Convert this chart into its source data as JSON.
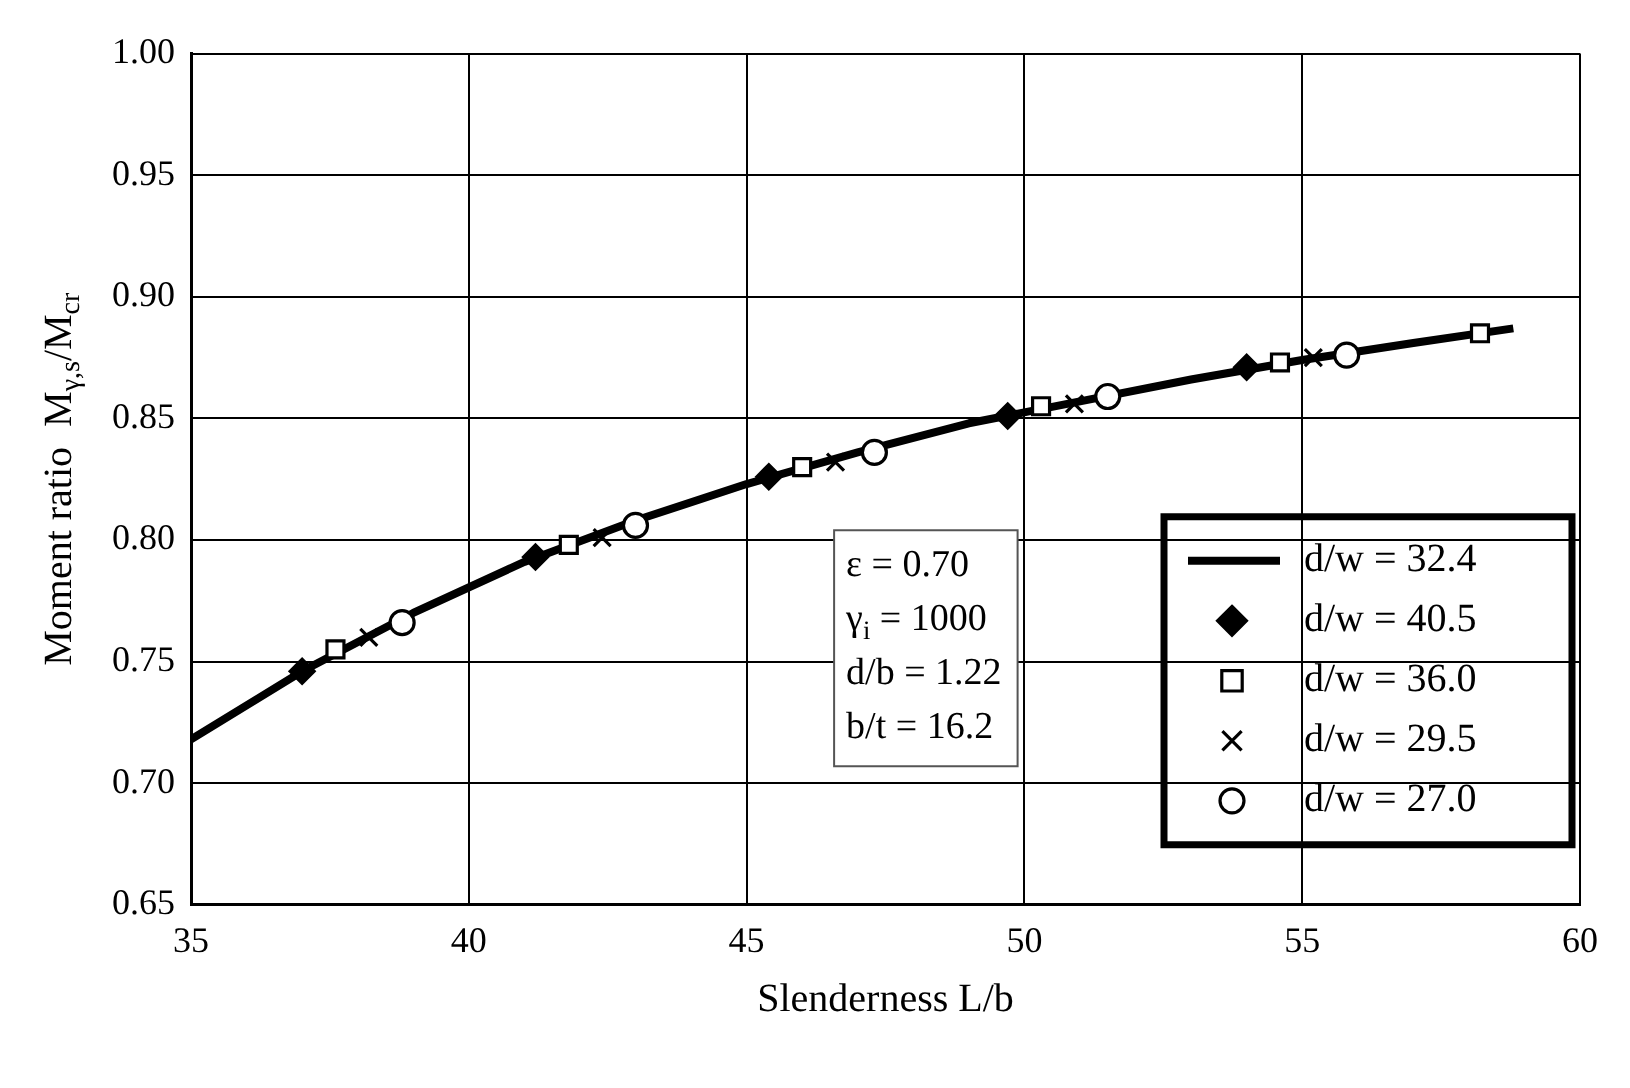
{
  "chart_data": {
    "type": "line",
    "xlabel": "Slenderness L/b",
    "ylabel": "Moment ratio  M$_{γ,s}$/M$_{cr}$",
    "xlim": [
      35,
      60
    ],
    "xticks": [
      35,
      40,
      45,
      50,
      55,
      60
    ],
    "ylim": [
      0.65,
      1.0
    ],
    "yticks": [
      {
        "value": 0.65,
        "label": "0.65"
      },
      {
        "value": 0.7,
        "label": "0.70"
      },
      {
        "value": 0.75,
        "label": "0.75"
      },
      {
        "value": 0.8,
        "label": "0.80"
      },
      {
        "value": 0.85,
        "label": "0.85"
      },
      {
        "value": 0.9,
        "label": "0.90"
      },
      {
        "value": 0.95,
        "label": "0.95"
      },
      {
        "value": 1.0,
        "label": "1.00"
      }
    ],
    "grid": true,
    "legend": "bottom right",
    "annotations": [
      "ε = 0.70",
      "γ$_{i}$ = 1000",
      "d/b = 1.22",
      "b/t = 16.2"
    ],
    "series": [
      {
        "name": "d/w = 32.4",
        "type": "line",
        "marker": "none",
        "color": "#000000",
        "x": [
          35,
          37,
          39,
          41,
          43,
          45,
          47,
          49,
          51,
          53,
          55,
          57,
          58.8
        ],
        "values": [
          0.718,
          0.746,
          0.77,
          0.791,
          0.808,
          0.823,
          0.836,
          0.848,
          0.857,
          0.866,
          0.874,
          0.881,
          0.887
        ]
      },
      {
        "name": "d/w = 40.5",
        "type": "scatter",
        "marker": "diamond",
        "color": "#000000",
        "x": [
          37.0,
          41.2,
          45.4,
          49.7,
          54.0
        ],
        "values": [
          0.746,
          0.793,
          0.826,
          0.851,
          0.871
        ]
      },
      {
        "name": "d/w = 36.0",
        "type": "scatter",
        "marker": "square",
        "color": "#000000",
        "x": [
          37.6,
          41.8,
          46.0,
          50.3,
          54.6,
          58.2
        ],
        "values": [
          0.755,
          0.798,
          0.83,
          0.855,
          0.873,
          0.885
        ]
      },
      {
        "name": "d/w = 29.5",
        "type": "scatter",
        "marker": "cross",
        "color": "#000000",
        "x": [
          38.2,
          42.4,
          46.6,
          50.9,
          55.2
        ],
        "values": [
          0.76,
          0.801,
          0.832,
          0.856,
          0.875
        ]
      },
      {
        "name": "d/w = 27.0",
        "type": "scatter",
        "marker": "circle",
        "color": "#000000",
        "x": [
          38.8,
          43.0,
          47.3,
          51.5,
          55.8
        ],
        "values": [
          0.766,
          0.806,
          0.836,
          0.859,
          0.876
        ]
      }
    ]
  }
}
